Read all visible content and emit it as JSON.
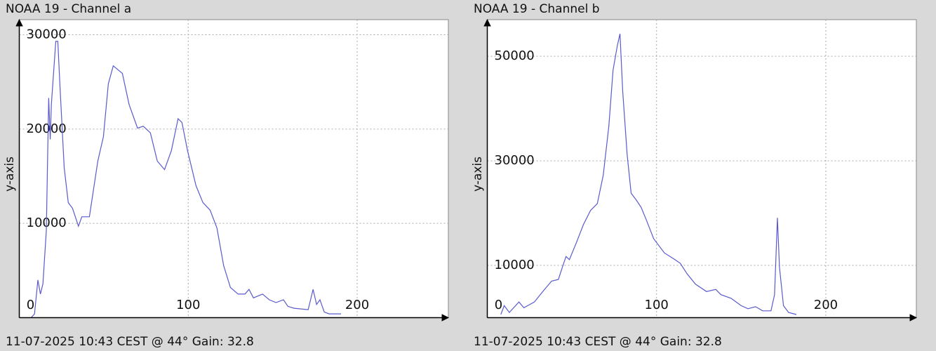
{
  "chart_data": [
    {
      "type": "line",
      "title": "NOAA 19 - Channel a",
      "ylabel": "y-axis",
      "caption": "11-07-2025 10:43 CEST @ 44° Gain: 32.8",
      "color": "#5a5acd",
      "grid": true,
      "xlim": [
        0,
        254
      ],
      "xticks": [
        0,
        100,
        200
      ],
      "ylim": [
        0,
        31600
      ],
      "yticks": [
        10000,
        20000,
        30000
      ],
      "x": [
        7,
        9,
        11,
        12.5,
        14,
        16,
        17.4,
        18.3,
        19,
        21.6,
        22.8,
        24,
        26.6,
        29,
        31.5,
        35,
        37,
        41.5,
        46.5,
        49.8,
        52.7,
        55.6,
        61,
        65,
        70,
        73.4,
        77.6,
        81.7,
        86,
        90,
        94,
        96.3,
        99.6,
        104.6,
        108.7,
        113,
        117,
        121,
        125,
        129.5,
        133.6,
        136,
        138.6,
        144,
        148,
        152,
        156.4,
        159,
        162.7,
        171,
        173.9,
        176,
        178,
        180.5,
        183.4,
        190.5
      ],
      "values": [
        0,
        400,
        4000,
        2500,
        3600,
        9200,
        23300,
        18900,
        22600,
        29300,
        29300,
        24800,
        15900,
        12200,
        11600,
        9700,
        10700,
        10700,
        16600,
        19200,
        24800,
        26700,
        25900,
        22600,
        20100,
        20300,
        19600,
        16600,
        15700,
        17700,
        21100,
        20700,
        17700,
        14000,
        12200,
        11400,
        9500,
        5500,
        3200,
        2500,
        2500,
        3000,
        2100,
        2500,
        1900,
        1600,
        1900,
        1200,
        1000,
        850,
        3000,
        1400,
        1900,
        600,
        400,
        400
      ]
    },
    {
      "type": "line",
      "title": "NOAA 19 - Channel b",
      "ylabel": "y-axis",
      "caption": "11-07-2025 10:43 CEST @ 44° Gain: 32.8",
      "color": "#5a5acd",
      "grid": true,
      "xlim": [
        0,
        253.5
      ],
      "xticks": [
        0,
        100,
        200
      ],
      "ylim": [
        0,
        57000
      ],
      "yticks": [
        10000,
        30000,
        50000
      ],
      "x": [
        8,
        10,
        13,
        18.7,
        21.6,
        27.8,
        32.8,
        38,
        42,
        44.4,
        46.5,
        48.5,
        52.7,
        56.8,
        61,
        65,
        68.5,
        71.8,
        74.3,
        76.8,
        78.4,
        80,
        82.6,
        85,
        88,
        90.9,
        94.2,
        98.3,
        104.6,
        110.8,
        114,
        118,
        123,
        129.5,
        135,
        138,
        144,
        150,
        154,
        158.5,
        162.7,
        167.6,
        169.7,
        171.4,
        172.6,
        175,
        178,
        182.6
      ],
      "values": [
        600,
        2300,
        1000,
        3000,
        1900,
        3000,
        5000,
        7000,
        7300,
        9700,
        11700,
        11100,
        14400,
        17800,
        20500,
        21800,
        27200,
        36600,
        47300,
        52000,
        54300,
        43300,
        31200,
        23800,
        22500,
        21100,
        18500,
        15100,
        12400,
        11100,
        10400,
        8400,
        6400,
        5000,
        5400,
        4400,
        3700,
        2300,
        1700,
        2100,
        1300,
        1300,
        4400,
        19100,
        9700,
        2300,
        1000,
        600
      ]
    }
  ]
}
